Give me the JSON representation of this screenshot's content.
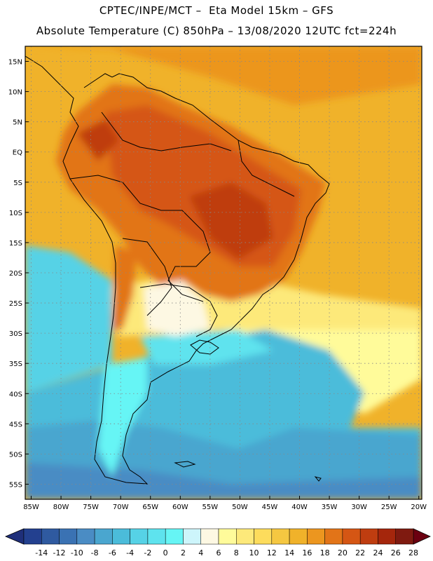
{
  "title": {
    "line1": "CPTEC/INPE/MCT –  Eta Model 15km – GFS",
    "line2": "Absolute Temperature (C) 850hPa – 13/08/2020 12UTC fct=224h"
  },
  "map": {
    "lat_labels": [
      "15N",
      "10N",
      "5N",
      "EQ",
      "5S",
      "10S",
      "15S",
      "20S",
      "25S",
      "30S",
      "35S",
      "40S",
      "45S",
      "50S",
      "55S"
    ],
    "lat_values": [
      15,
      10,
      5,
      0,
      -5,
      -10,
      -15,
      -20,
      -25,
      -30,
      -35,
      -40,
      -45,
      -50,
      -55
    ],
    "lon_labels": [
      "85W",
      "80W",
      "75W",
      "70W",
      "65W",
      "60W",
      "55W",
      "50W",
      "45W",
      "40W",
      "35W",
      "30W",
      "25W",
      "20W"
    ],
    "lon_values": [
      -85,
      -80,
      -75,
      -70,
      -65,
      -60,
      -55,
      -50,
      -45,
      -40,
      -35,
      -30,
      -25,
      -20
    ],
    "lon_range": [
      -86,
      -19.5
    ],
    "lat_range": [
      -57.5,
      17.5
    ],
    "grid": "dotted"
  },
  "colorbar": {
    "labels": [
      "-14",
      "-12",
      "-10",
      "-8",
      "-6",
      "-4",
      "-2",
      "0",
      "2",
      "4",
      "6",
      "8",
      "10",
      "12",
      "14",
      "16",
      "18",
      "20",
      "22",
      "24",
      "26",
      "28"
    ],
    "colors": [
      "#23408f",
      "#2f5aa0",
      "#3a72b3",
      "#4a8cc4",
      "#4aa6cf",
      "#4bbcda",
      "#56d2e6",
      "#5ee3ee",
      "#66f5f5",
      "#cdf5fb",
      "#fdf8e3",
      "#fffb9a",
      "#fde97a",
      "#fddc5c",
      "#f5c741",
      "#f0b22a",
      "#ec961f",
      "#e27418",
      "#d55614",
      "#bf3d10",
      "#a5260c",
      "#7f1a10"
    ],
    "under_color": "#1f2f7a",
    "over_color": "#6b0010"
  }
}
